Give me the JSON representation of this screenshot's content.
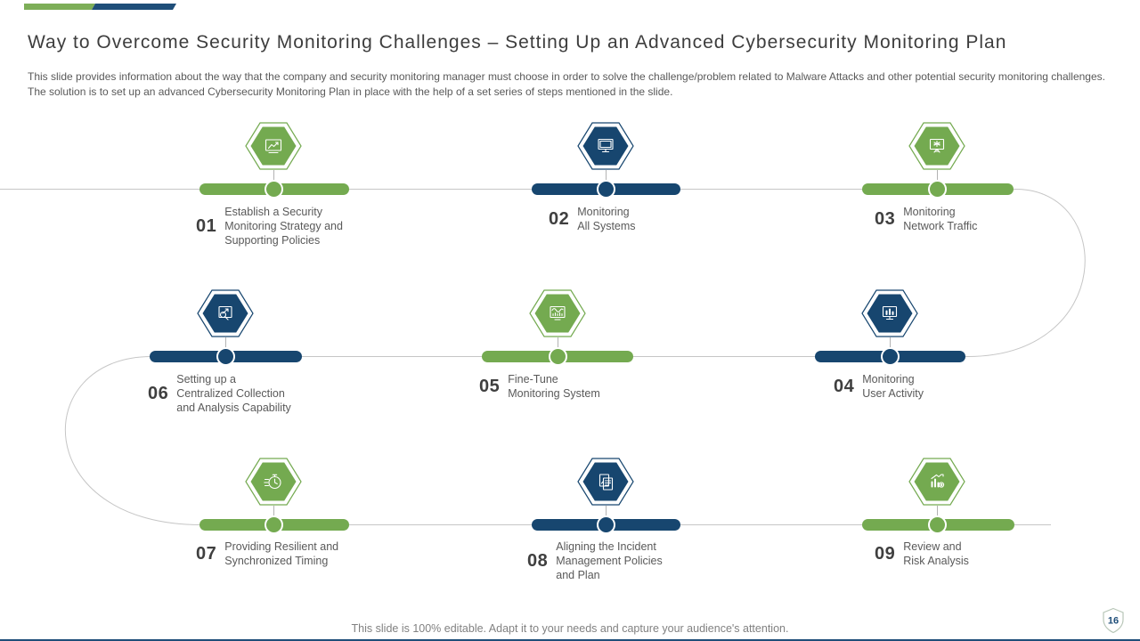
{
  "slide": {
    "title": "Way to Overcome Security Monitoring Challenges – Setting Up an Advanced Cybersecurity Monitoring Plan",
    "description": "This slide provides information about the way that the company and security monitoring manager must choose in order to solve the challenge/problem related to Malware Attacks and other potential security monitoring challenges. The solution is to set up an advanced Cybersecurity Monitoring Plan in place with the help of a set series of steps mentioned in the slide.",
    "footer_note": "This slide is 100% editable. Adapt it to your needs and capture your audience's attention.",
    "page_number": "16"
  },
  "colors": {
    "green": "#74AA50",
    "navy": "#17466F",
    "topbar_green": "#7DAE58",
    "topbar_navy": "#1F4E79",
    "connector_gray": "#c6c6c6",
    "title_text": "#3d3d3d",
    "body_text": "#595959",
    "footer_text": "#818181"
  },
  "steps": [
    {
      "number": "01",
      "label": "Establish a Security\nMonitoring Strategy and\nSupporting Policies",
      "color": "green",
      "icon": "strategy-board-icon"
    },
    {
      "number": "02",
      "label": "Monitoring\nAll Systems",
      "color": "navy",
      "icon": "monitor-icon"
    },
    {
      "number": "03",
      "label": "Monitoring\nNetwork Traffic",
      "color": "green",
      "icon": "monitor-network-icon"
    },
    {
      "number": "04",
      "label": "Monitoring\nUser Activity",
      "color": "navy",
      "icon": "monitor-bar-chart-icon"
    },
    {
      "number": "05",
      "label": "Fine-Tune\nMonitoring System",
      "color": "green",
      "icon": "dashboard-tuning-icon"
    },
    {
      "number": "06",
      "label": "Setting up a\nCentralized Collection\nand Analysis Capability",
      "color": "navy",
      "icon": "magnifier-chart-icon"
    },
    {
      "number": "07",
      "label": "Providing Resilient and\nSynchronized Timing",
      "color": "green",
      "icon": "stopwatch-icon"
    },
    {
      "number": "08",
      "label": "Aligning the Incident\nManagement Policies\nand Plan",
      "color": "navy",
      "icon": "documents-plan-icon"
    },
    {
      "number": "09",
      "label": "Review and\nRisk Analysis",
      "color": "green",
      "icon": "chart-gear-icon"
    }
  ]
}
